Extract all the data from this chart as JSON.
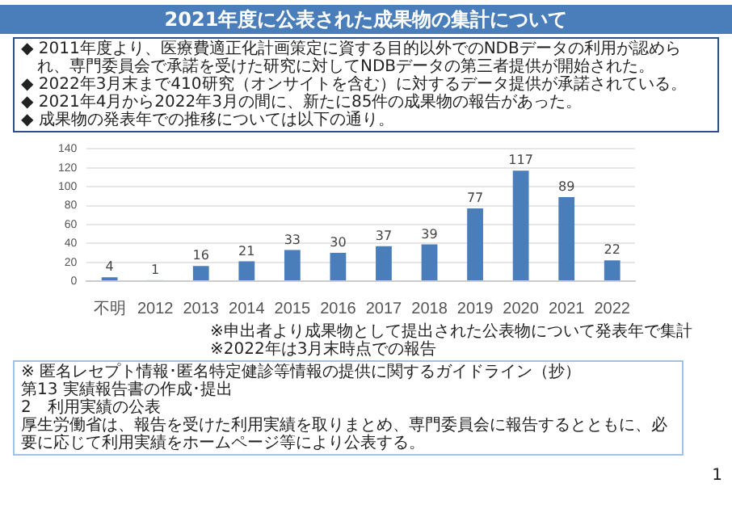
{
  "chart_data": {
    "type": "bar",
    "title": "2021年度に公表された成果物の集計について",
    "categories": [
      "不明",
      "2012",
      "2013",
      "2014",
      "2015",
      "2016",
      "2017",
      "2018",
      "2019",
      "2020",
      "2021",
      "2022"
    ],
    "values": [
      4,
      1,
      16,
      21,
      33,
      30,
      37,
      39,
      77,
      117,
      89,
      22
    ],
    "colors": [
      "#4a7ebb",
      "#9dc3e6",
      "#4a7ebb",
      "#4a7ebb",
      "#4a7ebb",
      "#4a7ebb",
      "#4a7ebb",
      "#4a7ebb",
      "#4a7ebb",
      "#4a7ebb",
      "#4a7ebb",
      "#4a7ebb"
    ],
    "ylim": [
      0,
      140
    ],
    "yticks": [
      0,
      20,
      40,
      60,
      80,
      100,
      120,
      140
    ],
    "grid": "y",
    "data_labels": true,
    "annotations": [
      "◆ 2011年度より、医療費適正化計画策定に資する目的以外でのNDBデータの利用が認められ、専門委員会で承諾を受けた研究に対してNDBデータの第三者提供が開始された。",
      "◆ 2022年3月末まで410研究（オンサイトを含む）に対するデータ提供が承諾されている。",
      "◆ 2021年4月から2022年3月の間に、新たに85件の成果物の報告があった。",
      "◆ 成果物の発表年での推移については以下の通り。",
      "※申出者より成果物として提出された公表物について発表年で集計",
      "※2022年は3月末時点での報告",
      "※ 匿名レセプト情報･匿名特定健診等情報の提供に関するガイドライン（抄）",
      "第13 実績報告書の作成･提出",
      "2　利用実績の公表",
      "厚生労働省は、報告を受けた利用実績を取りまとめ、専門委員会に報告するとともに、必要に応じて利用実績をホームページ等により公表する。",
      "1"
    ]
  }
}
